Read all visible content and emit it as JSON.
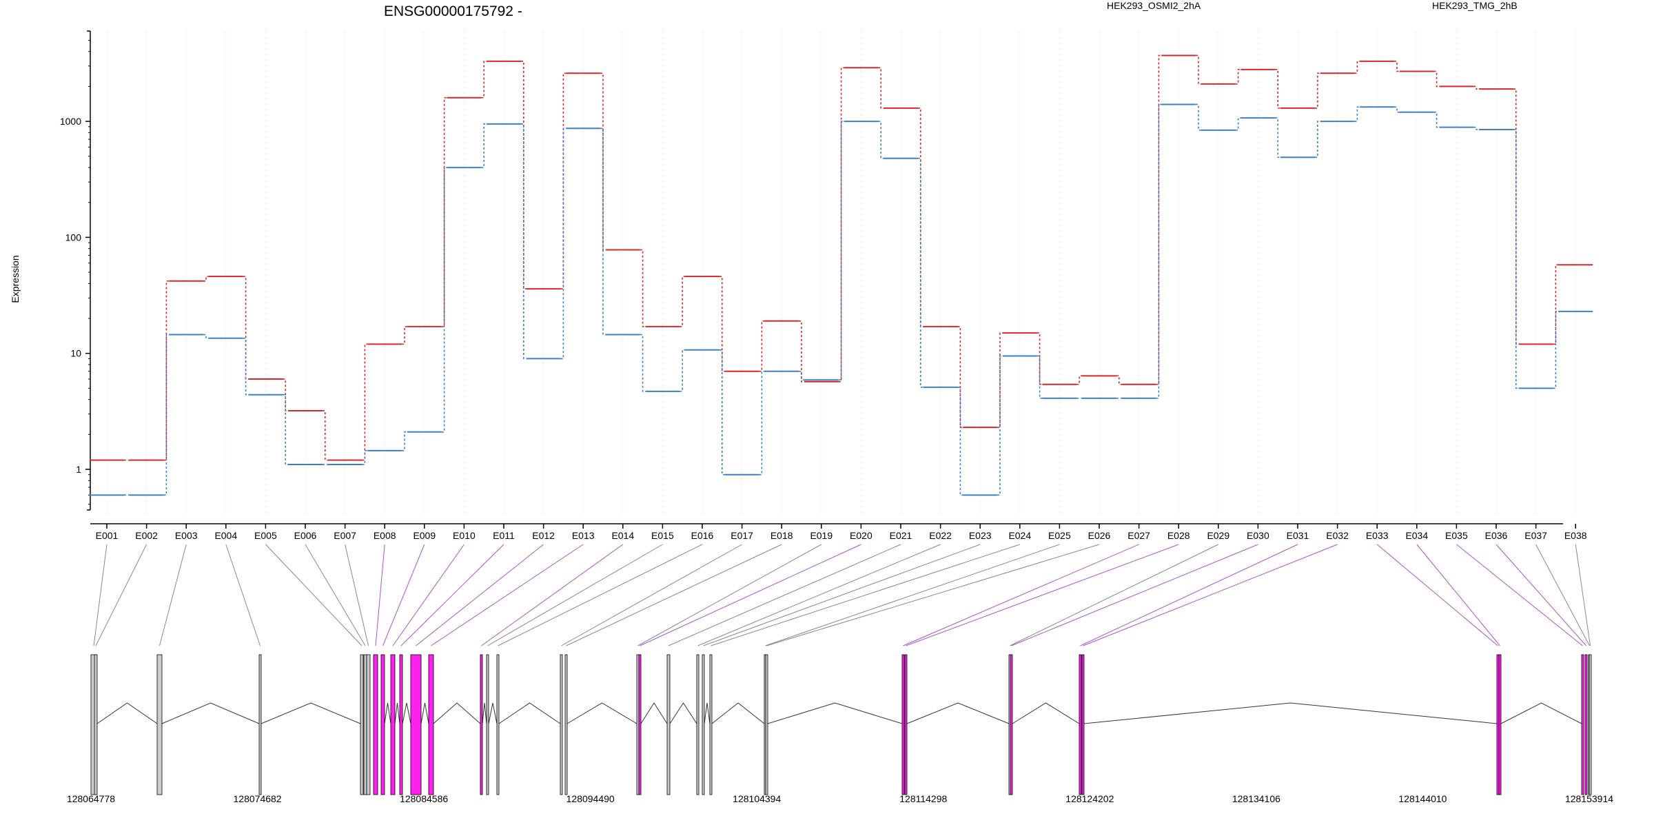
{
  "chart_data": {
    "type": "line",
    "title": "ENSG00000175792 -",
    "ylabel": "Expression",
    "y_scale": "log",
    "y_ticks": [
      1,
      10,
      100,
      1000
    ],
    "y_tick_labels": [
      "1",
      "10",
      "100",
      "1000"
    ],
    "categories": [
      "E001",
      "E002",
      "E003",
      "E004",
      "E005",
      "E006",
      "E007",
      "E008",
      "E009",
      "E010",
      "E011",
      "E012",
      "E013",
      "E014",
      "E015",
      "E016",
      "E017",
      "E018",
      "E019",
      "E020",
      "E021",
      "E022",
      "E023",
      "E024",
      "E025",
      "E026",
      "E027",
      "E028",
      "E029",
      "E030",
      "E031",
      "E032",
      "E033",
      "E034",
      "E035",
      "E036",
      "E037",
      "E038"
    ],
    "series": [
      {
        "name": "HEK293_OSMI2_2hA",
        "color": "#d62728",
        "values": [
          1.2,
          1.2,
          42,
          46,
          6,
          3.2,
          1.2,
          12,
          17,
          1600,
          3300,
          36,
          2600,
          78,
          17,
          46,
          7,
          19,
          5.7,
          2900,
          1300,
          17,
          2.3,
          15,
          5.4,
          6.4,
          5.4,
          3700,
          2100,
          2800,
          1300,
          2600,
          3300,
          2700,
          2000,
          1900,
          12,
          58
        ]
      },
      {
        "name": "HEK293_TMG_2hB",
        "color": "#3c7fc6",
        "values": [
          0.6,
          0.6,
          14.5,
          13.5,
          4.4,
          1.1,
          1.1,
          1.45,
          2.1,
          400,
          950,
          9,
          870,
          14.5,
          4.7,
          10.7,
          0.9,
          7,
          5.9,
          1000,
          480,
          5.1,
          0.6,
          9.5,
          4.1,
          4.1,
          4.1,
          1400,
          840,
          1070,
          490,
          1000,
          1330,
          1200,
          890,
          850,
          5,
          23
        ]
      }
    ],
    "genome_ticks": [
      "128064778",
      "128074682",
      "128084586",
      "128094490",
      "128104394",
      "128114298",
      "128124202",
      "128134106",
      "128144010",
      "128153914"
    ],
    "exon_highlight": [
      false,
      false,
      false,
      false,
      false,
      false,
      false,
      true,
      true,
      true,
      true,
      true,
      true,
      true,
      false,
      false,
      false,
      false,
      false,
      true,
      false,
      false,
      false,
      false,
      false,
      false,
      true,
      true,
      false,
      true,
      true,
      true,
      true,
      true,
      true,
      true,
      false,
      false
    ],
    "colors": {
      "highlight": "#ff22ee",
      "plain": "#cccccc",
      "connector_highlight": "#a855c8",
      "connector_plain": "#888888",
      "grid": "#e8e8f0"
    }
  }
}
